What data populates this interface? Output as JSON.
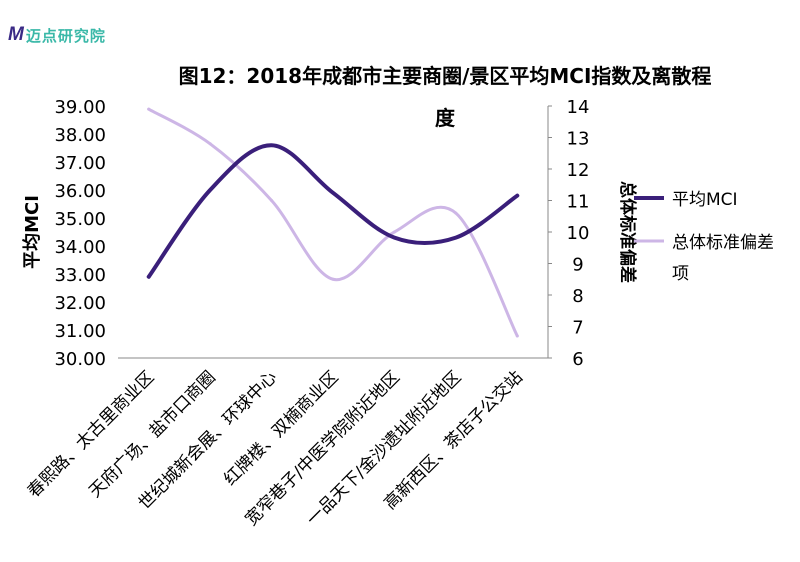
{
  "brand": {
    "mark": "M",
    "name": "迈点研究院",
    "color": "#3ab8a8",
    "mark_color": "#3a2a86"
  },
  "chart_data": {
    "type": "line",
    "title_line1": "图12：2018年成都市主要商圈/景区平均MCI指数及离散程",
    "title_line2": "度",
    "categories": [
      "春熙路、太古里商业区",
      "天府广场、盐市口商圈",
      "世纪城新会展、环球中心",
      "红牌楼、双楠商业区",
      "宽窄巷子/中医学院附近地区",
      "一品天下/金沙遗址附近地区",
      "高新西区、茶店子公交站"
    ],
    "series": [
      {
        "name": "平均MCI",
        "axis": "left",
        "color": "#3a1f7a",
        "values": [
          32.9,
          36.0,
          37.6,
          35.9,
          34.3,
          34.3,
          35.8
        ]
      },
      {
        "name": "总体标准偏差项",
        "legend_lines": [
          "总体标准偏差",
          "项"
        ],
        "axis": "right",
        "color": "#cdb6e6",
        "values": [
          13.9,
          12.8,
          11.0,
          8.5,
          10.0,
          10.6,
          6.7
        ]
      }
    ],
    "y_left": {
      "label": "平均MCI",
      "ylim": [
        30,
        39
      ],
      "ticks": [
        "30.00",
        "31.00",
        "32.00",
        "33.00",
        "34.00",
        "35.00",
        "36.00",
        "37.00",
        "38.00",
        "39.00"
      ]
    },
    "y_right": {
      "label": "总体标准偏差",
      "ylim": [
        6,
        14
      ],
      "ticks": [
        "6",
        "7",
        "8",
        "9",
        "10",
        "11",
        "12",
        "13",
        "14"
      ]
    },
    "grid": false,
    "legend_position": "right"
  }
}
